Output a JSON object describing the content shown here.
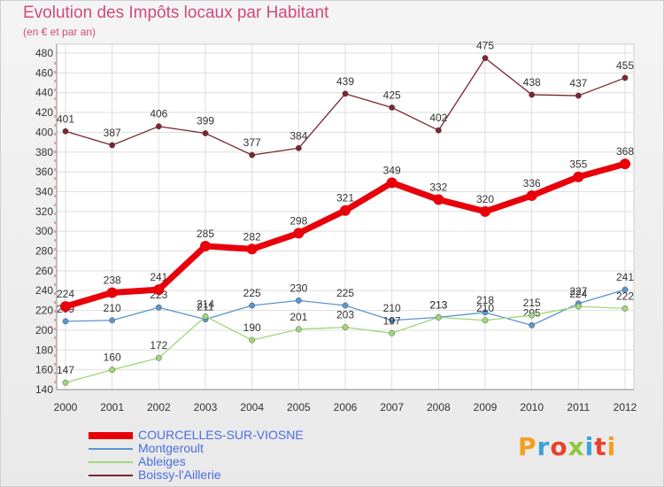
{
  "title": "Evolution des Impôts locaux par Habitant",
  "subtitle": "(en € et par an)",
  "logo": {
    "text": "Proxiti",
    "colors": [
      "#f4a020",
      "#3aa3d8",
      "#e8412c",
      "#8cc63f",
      "#3aa3d8",
      "#e8412c",
      "#f4a020"
    ]
  },
  "chart_data": {
    "type": "line",
    "x": [
      "2000",
      "2001",
      "2002",
      "2003",
      "2004",
      "2005",
      "2006",
      "2007",
      "2008",
      "2009",
      "2010",
      "2011",
      "2012"
    ],
    "ylim": [
      140,
      480
    ],
    "yticks": [
      140,
      160,
      180,
      200,
      220,
      240,
      260,
      280,
      300,
      320,
      340,
      360,
      380,
      400,
      420,
      440,
      460,
      480
    ],
    "grid": true,
    "legend_position": "bottom-left",
    "series": [
      {
        "name": "COURCELLES-SUR-VIOSNE",
        "color": "#e8000b",
        "values": [
          224,
          238,
          241,
          285,
          282,
          298,
          321,
          349,
          332,
          320,
          336,
          355,
          368
        ],
        "width": 7
      },
      {
        "name": "Montgeroult",
        "color": "#5b95cf",
        "values": [
          209,
          210,
          223,
          211,
          225,
          230,
          225,
          210,
          213,
          218,
          205,
          227,
          241
        ],
        "width": 1.3
      },
      {
        "name": "Ableiges",
        "color": "#9ed87a",
        "values": [
          147,
          160,
          172,
          214,
          190,
          201,
          203,
          197,
          213,
          210,
          215,
          224,
          222
        ],
        "width": 1.3
      },
      {
        "name": "Boissy-l'Aillerie",
        "color": "#7a2530",
        "values": [
          401,
          387,
          406,
          399,
          377,
          384,
          439,
          425,
          402,
          475,
          438,
          437,
          455
        ],
        "width": 1.3
      }
    ]
  }
}
